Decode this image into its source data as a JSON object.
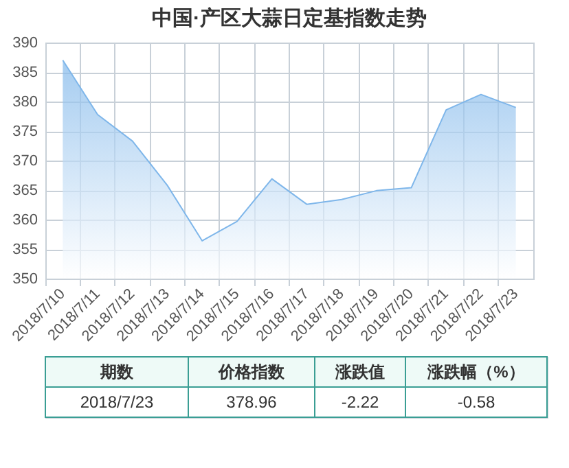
{
  "chart_data": {
    "type": "area",
    "title": "中国·产区大蒜日定基指数走势",
    "categories": [
      "2018/7/10",
      "2018/7/11",
      "2018/7/12",
      "2018/7/13",
      "2018/7/14",
      "2018/7/15",
      "2018/7/16",
      "2018/7/17",
      "2018/7/18",
      "2018/7/19",
      "2018/7/20",
      "2018/7/21",
      "2018/7/22",
      "2018/7/23"
    ],
    "series": [
      {
        "color": "#7eb6ea",
        "values": [
          387.0,
          377.8,
          373.3,
          365.8,
          356.4,
          359.7,
          366.9,
          362.6,
          363.4,
          364.9,
          365.4,
          378.6,
          381.2,
          379.0
        ]
      }
    ],
    "ylim": [
      350,
      390
    ],
    "yticks": [
      350,
      355,
      360,
      365,
      370,
      375,
      380,
      385,
      390
    ],
    "grid": true,
    "annotations": [
      "期数",
      "价格指数",
      "涨跌值",
      "涨跌幅（%）",
      "2018/7/23",
      "378.96",
      "-2.22",
      "-0.58"
    ]
  }
}
